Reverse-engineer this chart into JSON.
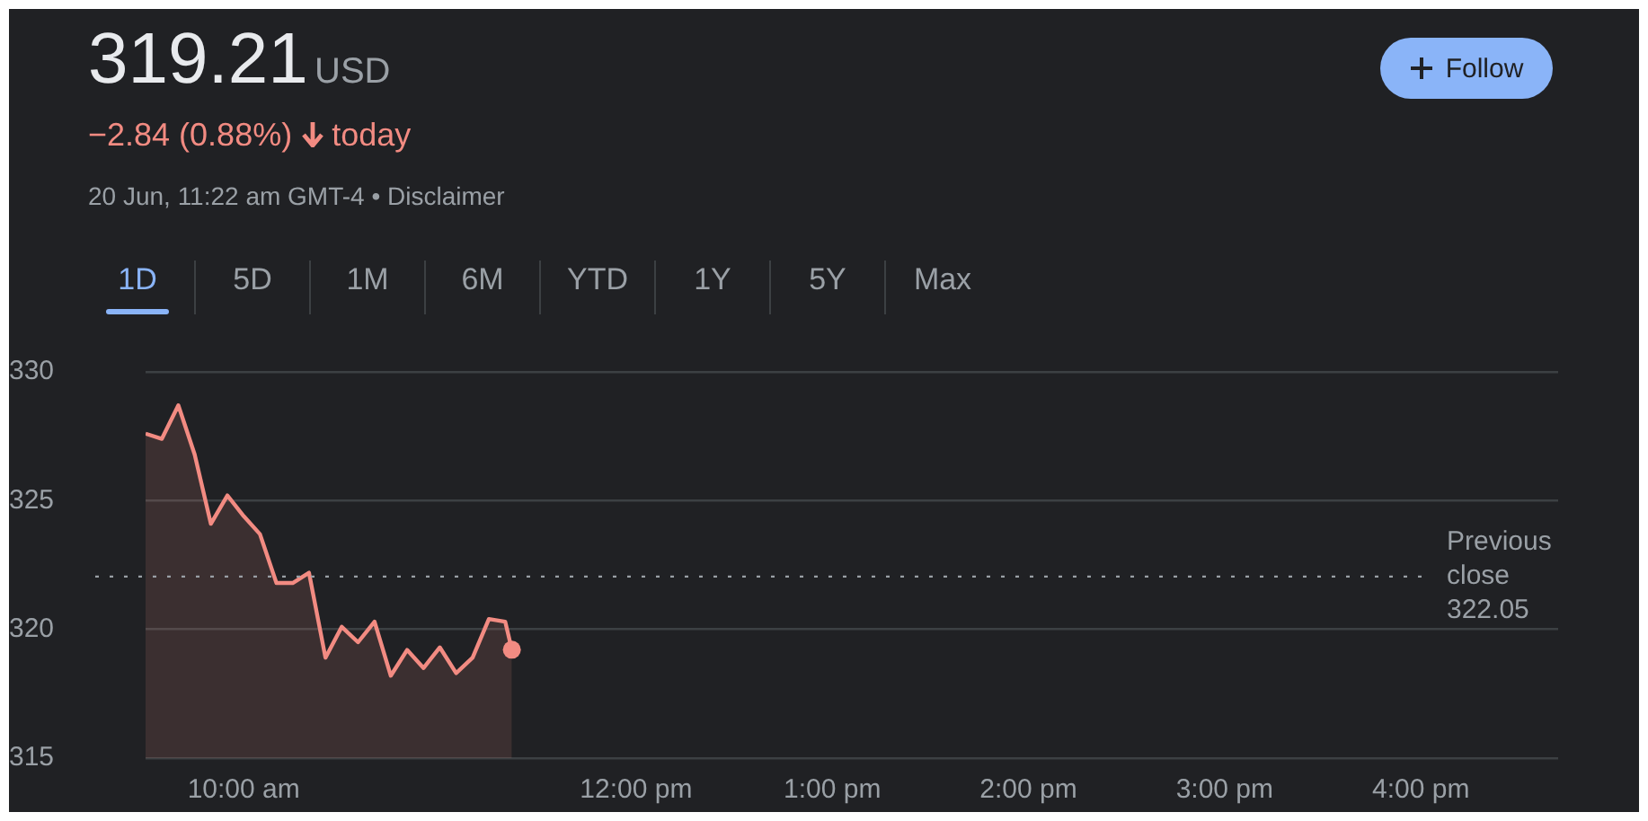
{
  "chart_data": {
    "type": "area",
    "annotations": [
      "319.21",
      "USD",
      "−2.84 (0.88%)",
      "today",
      "20 Jun, 11:22 am GMT-4 • Disclaimer",
      "Follow",
      "1D",
      "5D",
      "1M",
      "6M",
      "YTD",
      "1Y",
      "5Y",
      "Max"
    ],
    "x": [
      9.5,
      9.583,
      9.667,
      9.75,
      9.833,
      9.917,
      10,
      10.083,
      10.167,
      10.25,
      10.333,
      10.417,
      10.5,
      10.583,
      10.667,
      10.75,
      10.833,
      10.917,
      11,
      11.083,
      11.167,
      11.25,
      11.333,
      11.367
    ],
    "series": [
      {
        "color": "#f28b82",
        "values": [
          327.6,
          327.4,
          328.7,
          326.8,
          324.1,
          325.2,
          324.4,
          323.7,
          321.8,
          321.8,
          322.2,
          318.9,
          320.1,
          319.5,
          320.3,
          318.2,
          319.2,
          318.5,
          319.3,
          318.3,
          318.9,
          320.4,
          320.3,
          319.21
        ]
      }
    ],
    "xlim": [
      9.5,
      16.7
    ],
    "xticks": [
      {
        "value": 10,
        "label": "10:00 am"
      },
      {
        "value": 12,
        "label": "12:00 pm"
      },
      {
        "value": 13,
        "label": "1:00 pm"
      },
      {
        "value": 14,
        "label": "2:00 pm"
      },
      {
        "value": 15,
        "label": "3:00 pm"
      },
      {
        "value": 16,
        "label": "4:00 pm"
      }
    ],
    "ylim": [
      315,
      330
    ],
    "yticks": [
      315,
      320,
      325,
      330
    ],
    "ref_lines": [
      {
        "axis": "y",
        "value": 322.05,
        "label": "Previous close 322.05",
        "line_style": "dotted",
        "color": "#9aa0a6"
      }
    ],
    "grid": "y",
    "legend": false
  }
}
